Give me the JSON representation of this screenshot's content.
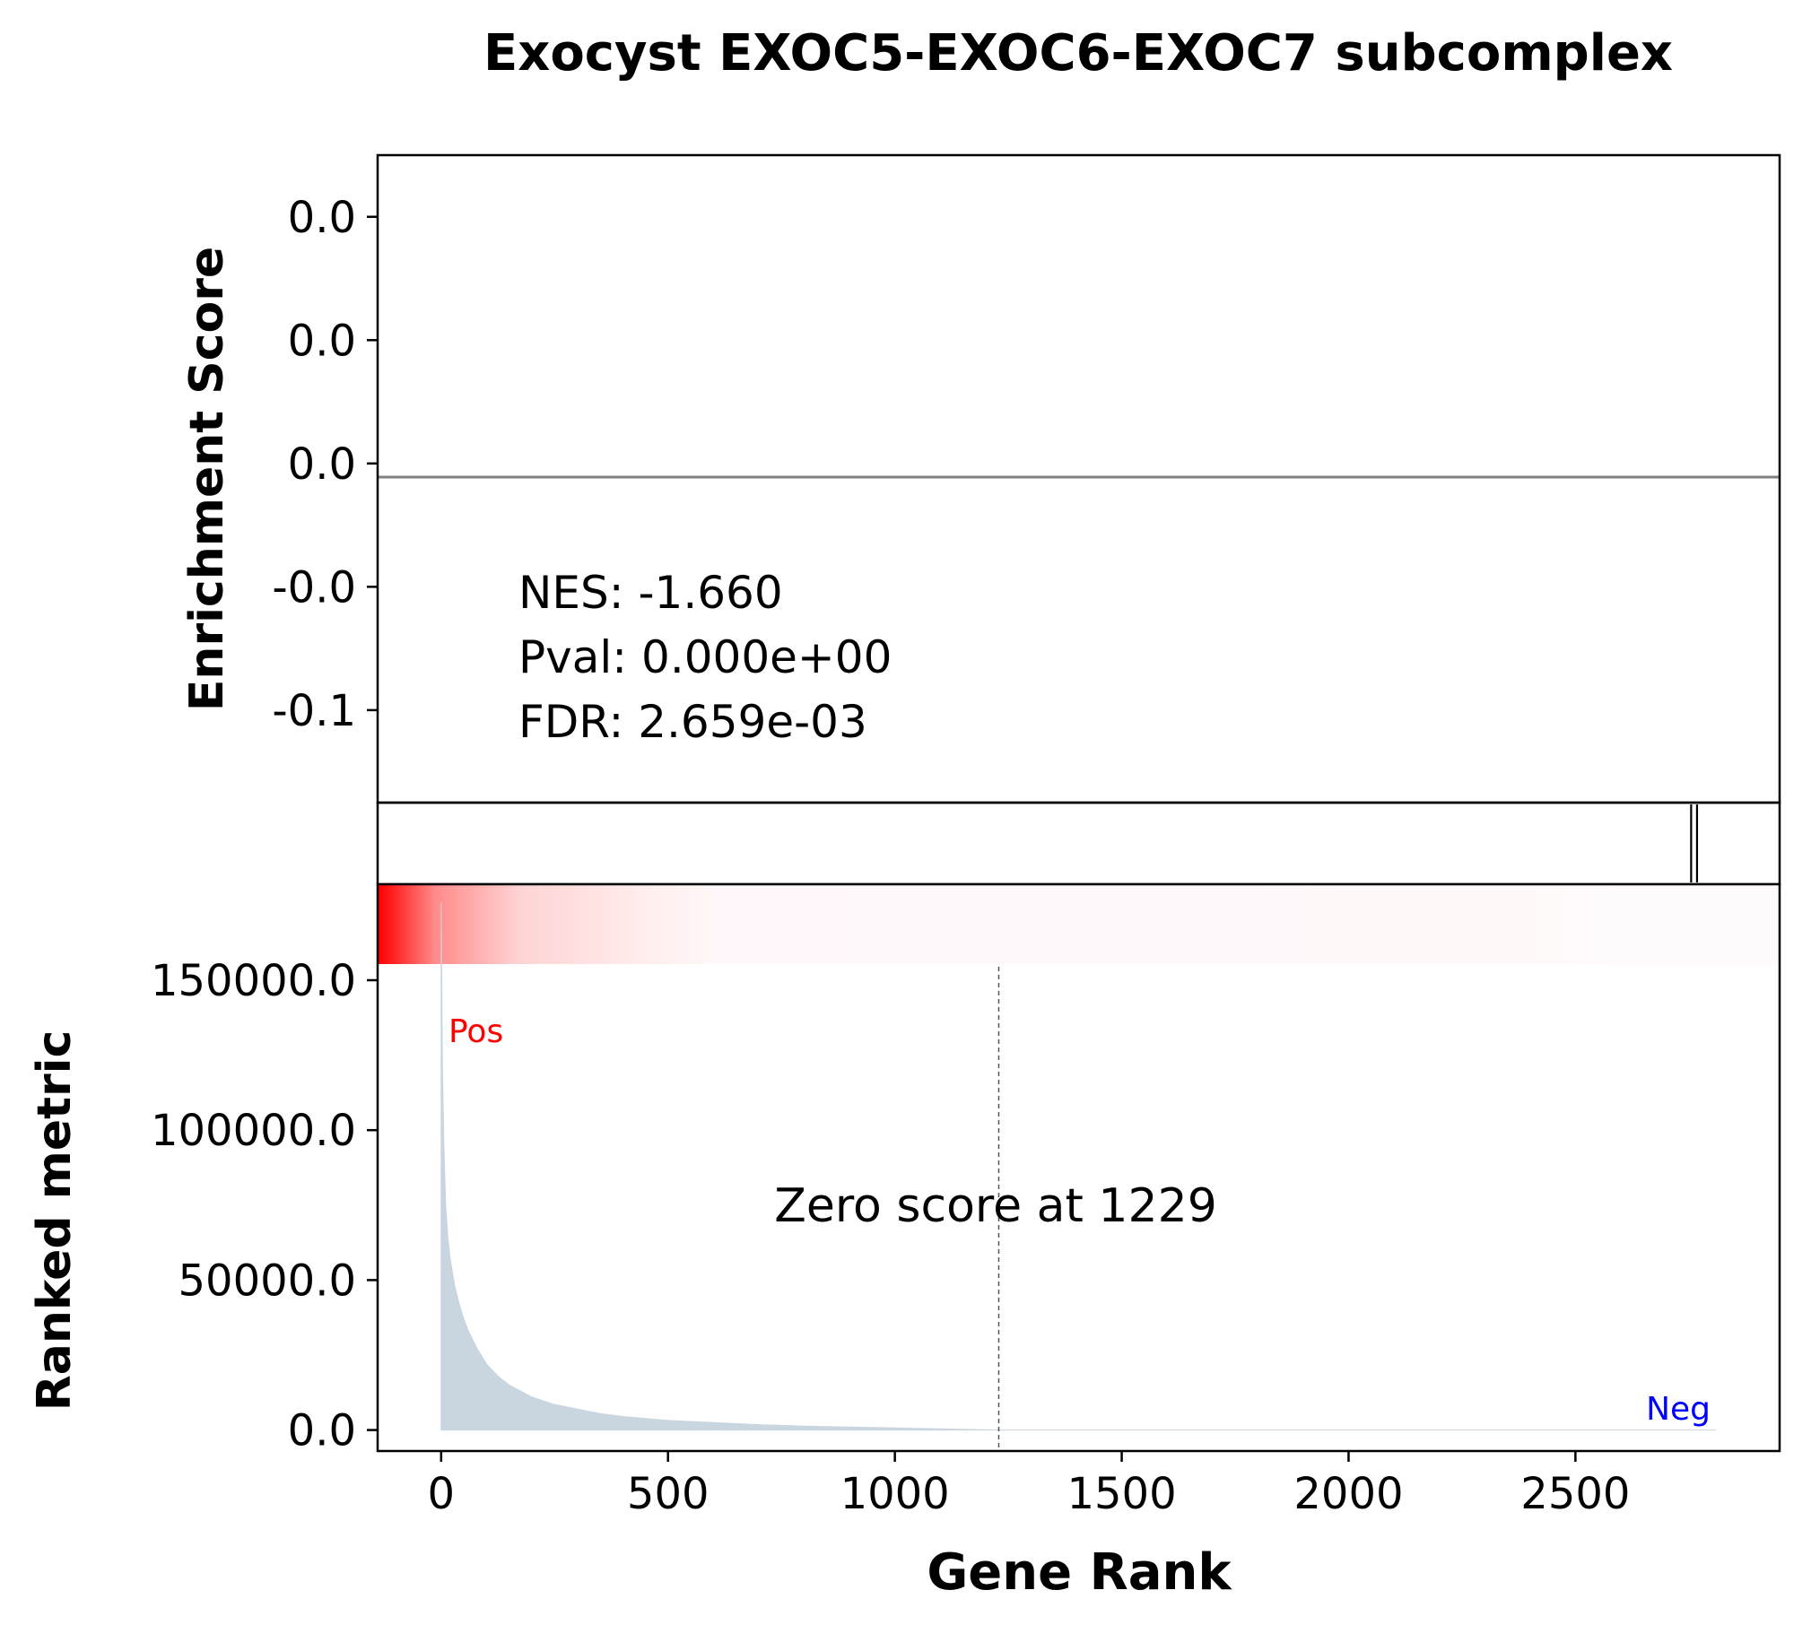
{
  "title": "Exocyst EXOC5-EXOC6-EXOC7 subcomplex",
  "colors": {
    "axis": "#000000",
    "zero_line": "#808080",
    "metric_fill": "#c9d5df",
    "heat_high": "#ff0000",
    "heat_low": "#fff7f9",
    "pos_label": "#ff0000",
    "neg_label": "#0000ff",
    "dashed_line": "#555555"
  },
  "chart_data": [
    {
      "type": "line",
      "panel": "enrichment score",
      "ylabel": "Enrichment Score",
      "xlim": [
        -140,
        2950
      ],
      "ylim": [
        -0.11,
        0.1
      ],
      "yticks": [
        {
          "value": 0.08,
          "label": "0.0"
        },
        {
          "value": 0.04,
          "label": "0.0"
        },
        {
          "value": 0.0,
          "label": "0.0"
        },
        {
          "value": -0.04,
          "label": "-0.0"
        },
        {
          "value": -0.08,
          "label": "-0.1"
        }
      ],
      "series": [
        {
          "x": [
            -140,
            2950
          ],
          "y": [
            0,
            0
          ]
        }
      ],
      "stats": {
        "nes": "NES: -1.660",
        "pval": "Pval: 0.000e+00",
        "fdr": "FDR: 2.659e-03"
      }
    },
    {
      "type": "line",
      "panel": "gene set hits",
      "hit_ranks": [
        2755,
        2768
      ]
    },
    {
      "type": "area",
      "panel": "ranked metric",
      "xlabel": "Gene Rank",
      "ylabel": "Ranked metric",
      "xlim": [
        -140,
        2950
      ],
      "ylim": [
        -7000,
        182000
      ],
      "xticks": [
        0,
        500,
        1000,
        1500,
        2000,
        2500
      ],
      "yticks": [
        {
          "value": 0,
          "label": "0.0"
        },
        {
          "value": 50000,
          "label": "50000.0"
        },
        {
          "value": 100000,
          "label": "100000.0"
        },
        {
          "value": 150000,
          "label": "150000.0"
        }
      ],
      "x": [
        0,
        3,
        6,
        10,
        15,
        20,
        30,
        40,
        50,
        60,
        80,
        100,
        125,
        150,
        200,
        250,
        300,
        350,
        400,
        500,
        600,
        700,
        800,
        1000,
        1229,
        1500,
        2000,
        2500,
        2810
      ],
      "y": [
        176000,
        120000,
        95000,
        75000,
        64000,
        57000,
        48000,
        42000,
        37000,
        33000,
        27000,
        22000,
        18000,
        15000,
        11000,
        8500,
        7000,
        5500,
        4500,
        3200,
        2500,
        1800,
        1300,
        700,
        0,
        0,
        0,
        0,
        0
      ],
      "zero_cross": 1229,
      "zero_label": "Zero score at 1229",
      "pos_label": "Pos",
      "neg_label": "Neg"
    }
  ]
}
